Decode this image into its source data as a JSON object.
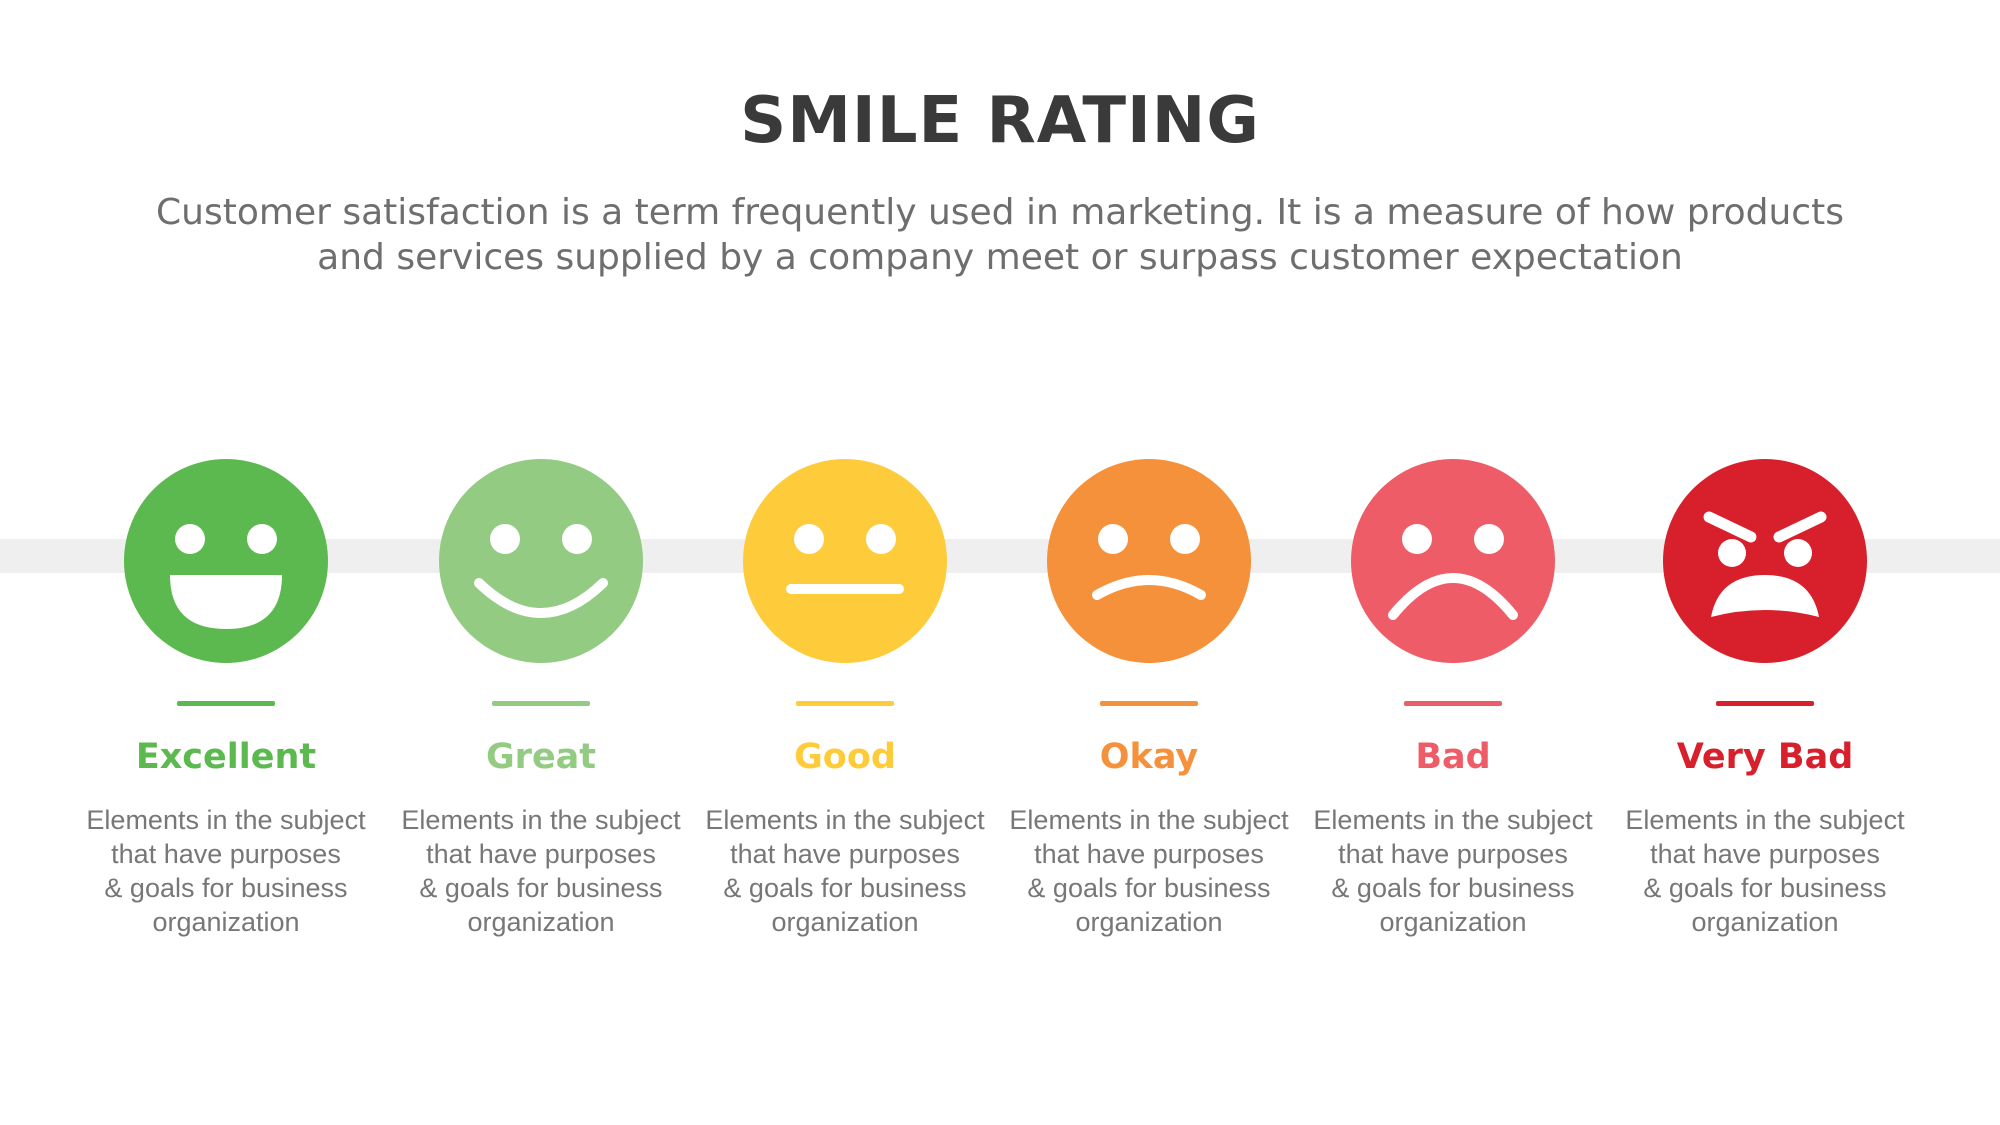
{
  "header": {
    "title": "SMILE RATING",
    "subtitle_line1": "Customer satisfaction is a term frequently used in marketing. It is a measure of how products",
    "subtitle_line2": "and services supplied by a company meet or surpass customer expectation"
  },
  "ratings": [
    {
      "label": "Excellent",
      "color": "#5bb94f",
      "icon": "laughing-face-icon",
      "desc": [
        "Elements in the subject",
        "that have purposes",
        "& goals for business",
        "organization"
      ]
    },
    {
      "label": "Great",
      "color": "#93cb83",
      "icon": "smiling-face-icon",
      "desc": [
        "Elements in the subject",
        "that have purposes",
        "& goals for business",
        "organization"
      ]
    },
    {
      "label": "Good",
      "color": "#fecc3b",
      "icon": "neutral-face-icon",
      "desc": [
        "Elements in the subject",
        "that have purposes",
        "& goals for business",
        "organization"
      ]
    },
    {
      "label": "Okay",
      "color": "#f5913b",
      "icon": "slightly-frowning-face-icon",
      "desc": [
        "Elements in the subject",
        "that have purposes",
        "& goals for business",
        "organization"
      ]
    },
    {
      "label": "Bad",
      "color": "#ee5c67",
      "icon": "frowning-face-icon",
      "desc": [
        "Elements in the subject",
        "that have purposes",
        "& goals for business",
        "organization"
      ]
    },
    {
      "label": "Very Bad",
      "color": "#d7202c",
      "icon": "angry-face-icon",
      "desc": [
        "Elements in the subject",
        "that have purposes",
        "& goals for business",
        "organization"
      ]
    }
  ]
}
